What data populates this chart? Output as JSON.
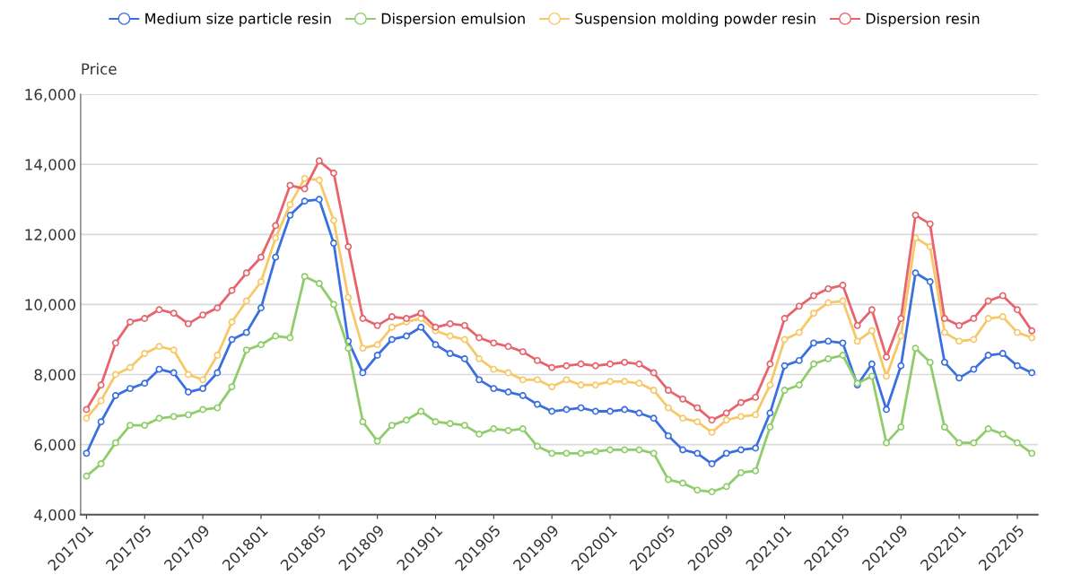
{
  "chart_data": {
    "type": "line",
    "ylabel": "Price",
    "categories": [
      "201701",
      null,
      null,
      null,
      "201705",
      null,
      null,
      null,
      "201709",
      null,
      null,
      null,
      "201801",
      null,
      null,
      null,
      "201805",
      null,
      null,
      null,
      "201809",
      null,
      null,
      null,
      "201901",
      null,
      null,
      null,
      "201905",
      null,
      null,
      null,
      "201909",
      null,
      null,
      null,
      "202001",
      null,
      null,
      null,
      "202005",
      null,
      null,
      null,
      "202009",
      null,
      null,
      null,
      "202101",
      null,
      null,
      null,
      "202105",
      null,
      null,
      null,
      "202109",
      null,
      null,
      null,
      "202201",
      null,
      null,
      null,
      "202205",
      null
    ],
    "series": [
      {
        "name": "Medium size particle resin",
        "color": "#3a6fe0",
        "values": [
          5750,
          6650,
          7400,
          7600,
          7750,
          8150,
          8050,
          7500,
          7600,
          8050,
          9000,
          9200,
          9900,
          11350,
          12550,
          12950,
          13000,
          11750,
          8950,
          8050,
          8550,
          9000,
          9100,
          9350,
          8850,
          8600,
          8450,
          7850,
          7600,
          7500,
          7400,
          7150,
          6950,
          7000,
          7050,
          6950,
          6950,
          7000,
          6900,
          6750,
          6250,
          5850,
          5750,
          5450,
          5750,
          5850,
          5900,
          6900,
          8250,
          8400,
          8900,
          8950,
          8900,
          7700,
          8300,
          7000,
          8250,
          10900,
          10650,
          8350,
          7900,
          8150,
          8550,
          8600,
          8250,
          8050
        ]
      },
      {
        "name": "Dispersion emulsion",
        "color": "#8fcd6a",
        "values": [
          5100,
          5450,
          6050,
          6550,
          6550,
          6750,
          6800,
          6850,
          7000,
          7050,
          7650,
          8700,
          8850,
          9100,
          9050,
          10800,
          10600,
          10000,
          8750,
          6650,
          6100,
          6550,
          6700,
          6950,
          6650,
          6600,
          6550,
          6300,
          6450,
          6400,
          6450,
          5950,
          5750,
          5750,
          5750,
          5800,
          5850,
          5850,
          5850,
          5750,
          5000,
          4900,
          4700,
          4650,
          4800,
          5200,
          5250,
          6500,
          7550,
          7700,
          8300,
          8450,
          8550,
          7750,
          7950,
          6050,
          6500,
          8750,
          8350,
          6500,
          6050,
          6050,
          6450,
          6300,
          6050,
          5750
        ]
      },
      {
        "name": "Suspension molding powder resin",
        "color": "#f7c868",
        "values": [
          6750,
          7250,
          8000,
          8200,
          8600,
          8800,
          8700,
          8000,
          7850,
          8550,
          9500,
          10100,
          10650,
          11900,
          12850,
          13600,
          13550,
          12400,
          10200,
          8750,
          8850,
          9350,
          9500,
          9600,
          9250,
          9100,
          9000,
          8450,
          8150,
          8050,
          7850,
          7850,
          7650,
          7850,
          7700,
          7700,
          7800,
          7800,
          7750,
          7550,
          7050,
          6750,
          6650,
          6350,
          6700,
          6800,
          6850,
          7700,
          9000,
          9200,
          9750,
          10050,
          10100,
          8950,
          9250,
          7950,
          9100,
          11900,
          11650,
          9200,
          8950,
          9000,
          9600,
          9650,
          9200,
          9050
        ]
      },
      {
        "name": "Dispersion resin",
        "color": "#e8636b",
        "values": [
          7000,
          7700,
          8900,
          9500,
          9600,
          9850,
          9750,
          9450,
          9700,
          9900,
          10400,
          10900,
          11350,
          12250,
          13400,
          13300,
          14100,
          13750,
          11650,
          9600,
          9400,
          9650,
          9600,
          9750,
          9350,
          9450,
          9400,
          9050,
          8900,
          8800,
          8650,
          8400,
          8200,
          8250,
          8300,
          8250,
          8300,
          8350,
          8300,
          8050,
          7550,
          7300,
          7050,
          6700,
          6900,
          7200,
          7350,
          8300,
          9600,
          9950,
          10250,
          10450,
          10550,
          9400,
          9850,
          8500,
          9600,
          12550,
          12300,
          9600,
          9400,
          9600,
          10100,
          10250,
          9850,
          9250
        ]
      }
    ],
    "ylim": [
      4000,
      16000
    ],
    "yticks": [
      {
        "value": 4000,
        "label": "4,000"
      },
      {
        "value": 6000,
        "label": "6,000"
      },
      {
        "value": 8000,
        "label": "8,000"
      },
      {
        "value": 10000,
        "label": "10,000"
      },
      {
        "value": 12000,
        "label": "12,000"
      },
      {
        "value": 14000,
        "label": "14,000"
      },
      {
        "value": 16000,
        "label": "16,000"
      }
    ],
    "grid": "y",
    "legend": "top",
    "marker": "circle",
    "line_style": "solid"
  }
}
